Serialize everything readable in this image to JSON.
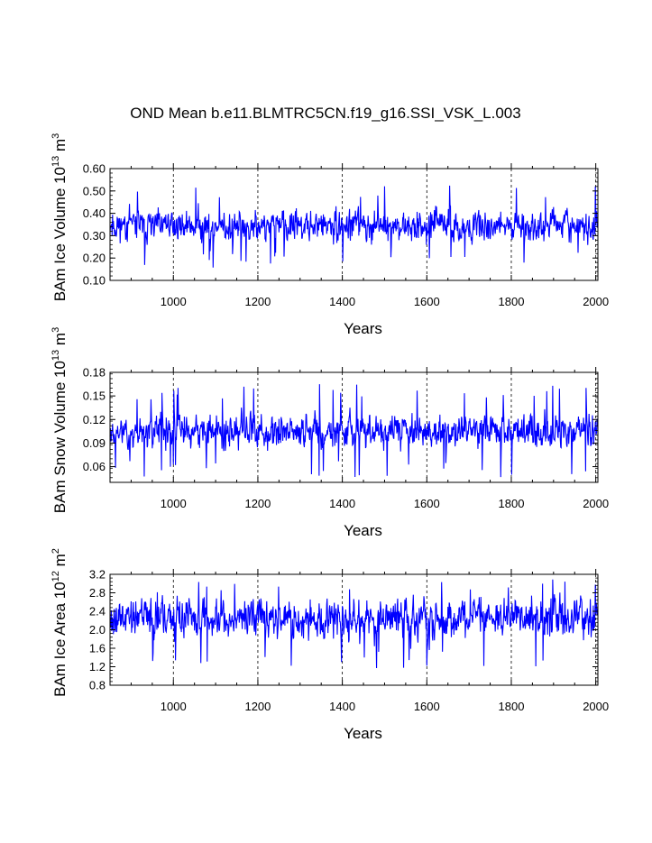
{
  "title": "OND Mean b.e11.BLMTRC5CN.f19_g16.SSI_VSK_L.003",
  "colors": {
    "series": "#0000ff",
    "axis": "#000000",
    "grid": "#000000"
  },
  "chart_data": [
    {
      "type": "line",
      "id": "ice_volume",
      "title": "OND Mean b.e11.BLMTRC5CN.f19_g16.SSI_VSK_L.003",
      "xlabel": "Years",
      "ylabel_main": "BAm Ice Volume 10",
      "ylabel_exp": "13",
      "ylabel_unit": " m",
      "ylabel_unit_exp": "3",
      "xlim": [
        850,
        2005
      ],
      "ylim": [
        0.1,
        0.6
      ],
      "xticks": [
        1000,
        1200,
        1400,
        1600,
        1800,
        2000
      ],
      "xtick_labels": [
        "1000",
        "1200",
        "1400",
        "1600",
        "1800",
        "2000"
      ],
      "yticks": [
        0.1,
        0.2,
        0.3,
        0.4,
        0.5,
        0.6
      ],
      "ytick_labels": [
        "0.10",
        "0.20",
        "0.30",
        "0.40",
        "0.50",
        "0.60"
      ],
      "grid_x": [
        1000,
        1200,
        1400,
        1600,
        1800,
        2000
      ],
      "series": [
        {
          "name": "BAm Ice Volume",
          "x_start": 850,
          "x_end": 2005,
          "mean": 0.345,
          "spread": 0.055,
          "min": 0.155,
          "max": 0.525,
          "seed": 11
        }
      ]
    },
    {
      "type": "line",
      "id": "snow_volume",
      "xlabel": "Years",
      "ylabel_main": "BAm Snow Volume 10",
      "ylabel_exp": "13",
      "ylabel_unit": " m",
      "ylabel_unit_exp": "3",
      "xlim": [
        850,
        2005
      ],
      "ylim": [
        0.04,
        0.18
      ],
      "xticks": [
        1000,
        1200,
        1400,
        1600,
        1800,
        2000
      ],
      "xtick_labels": [
        "1000",
        "1200",
        "1400",
        "1600",
        "1800",
        "2000"
      ],
      "yticks": [
        0.06,
        0.09,
        0.12,
        0.15,
        0.18
      ],
      "ytick_labels": [
        "0.06",
        "0.09",
        "0.12",
        "0.15",
        "0.18"
      ],
      "grid_x": [
        1000,
        1200,
        1400,
        1600,
        1800,
        2000
      ],
      "series": [
        {
          "name": "BAm Snow Volume",
          "x_start": 850,
          "x_end": 2005,
          "mean": 0.105,
          "spread": 0.018,
          "min": 0.045,
          "max": 0.165,
          "seed": 23
        }
      ]
    },
    {
      "type": "line",
      "id": "ice_area",
      "xlabel": "Years",
      "ylabel_main": "BAm Ice Area 10",
      "ylabel_exp": "12",
      "ylabel_unit": " m",
      "ylabel_unit_exp": "2",
      "xlim": [
        850,
        2005
      ],
      "ylim": [
        0.8,
        3.2
      ],
      "xticks": [
        1000,
        1200,
        1400,
        1600,
        1800,
        2000
      ],
      "xtick_labels": [
        "1000",
        "1200",
        "1400",
        "1600",
        "1800",
        "2000"
      ],
      "yticks": [
        0.8,
        1.2,
        1.6,
        2.0,
        2.4,
        2.8,
        3.2
      ],
      "ytick_labels": [
        "0.8",
        "1.2",
        "1.6",
        "2.0",
        "2.4",
        "2.8",
        "3.2"
      ],
      "grid_x": [
        1000,
        1200,
        1400,
        1600,
        1800,
        2000
      ],
      "series": [
        {
          "name": "BAm Ice Area",
          "x_start": 850,
          "x_end": 2005,
          "mean": 2.25,
          "spread": 0.35,
          "min": 1.15,
          "max": 3.1,
          "seed": 37
        }
      ]
    }
  ]
}
